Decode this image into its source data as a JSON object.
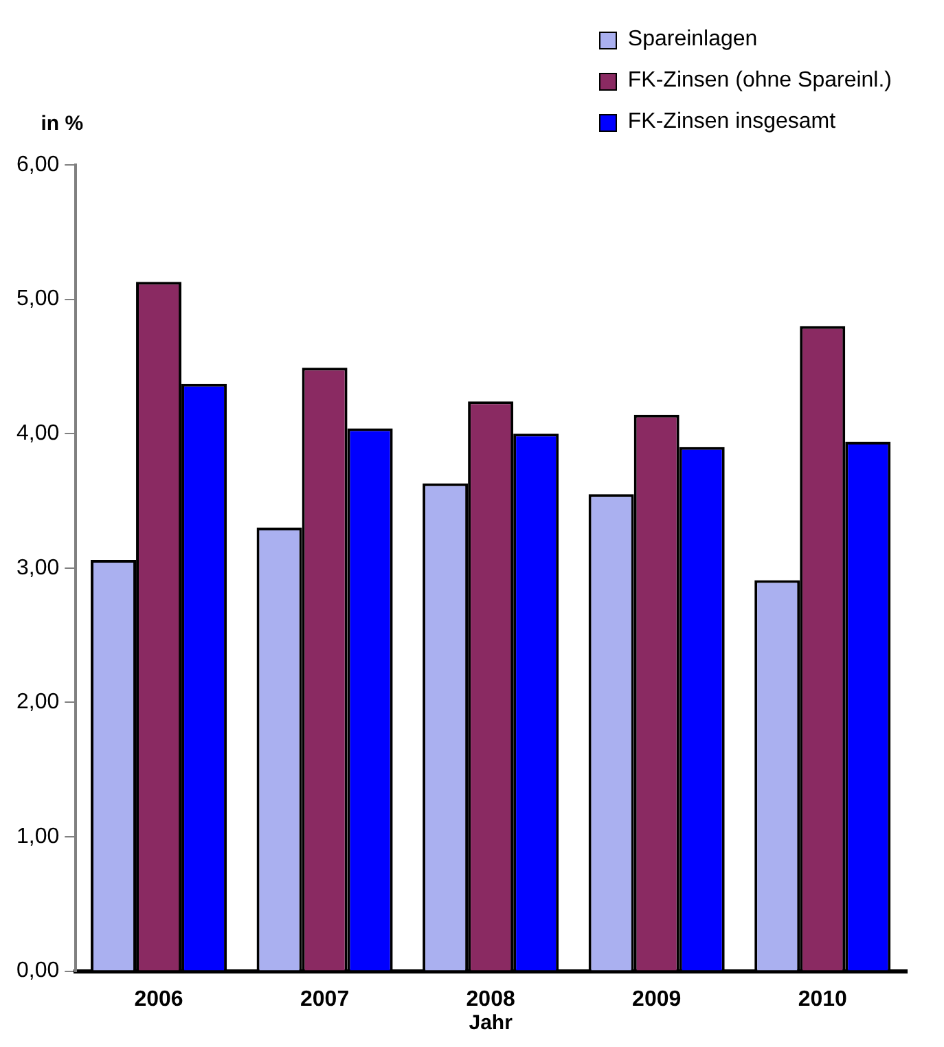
{
  "chart_data": {
    "type": "bar",
    "ylabel": "in %",
    "xlabel": "Jahr",
    "categories": [
      "2006",
      "2007",
      "2008",
      "2009",
      "2010"
    ],
    "series": [
      {
        "name": "Spareinlagen",
        "color": "#aab0f0",
        "values": [
          3.06,
          3.3,
          3.63,
          3.55,
          2.91
        ]
      },
      {
        "name": "FK-Zinsen (ohne Spareinl.)",
        "color": "#8a2a62",
        "values": [
          5.13,
          4.49,
          4.24,
          4.14,
          4.8
        ]
      },
      {
        "name": "FK-Zinsen insgesamt",
        "color": "#0000ff",
        "values": [
          4.37,
          4.04,
          4.0,
          3.9,
          3.94
        ]
      }
    ],
    "ylim": [
      0,
      6
    ],
    "yticks": [
      {
        "value": 0,
        "label": "0,00"
      },
      {
        "value": 1,
        "label": "1,00"
      },
      {
        "value": 2,
        "label": "2,00"
      },
      {
        "value": 3,
        "label": "3,00"
      },
      {
        "value": 4,
        "label": "4,00"
      },
      {
        "value": 5,
        "label": "5,00"
      },
      {
        "value": 6,
        "label": "6,00"
      }
    ],
    "grid": false,
    "legend": "top right"
  }
}
